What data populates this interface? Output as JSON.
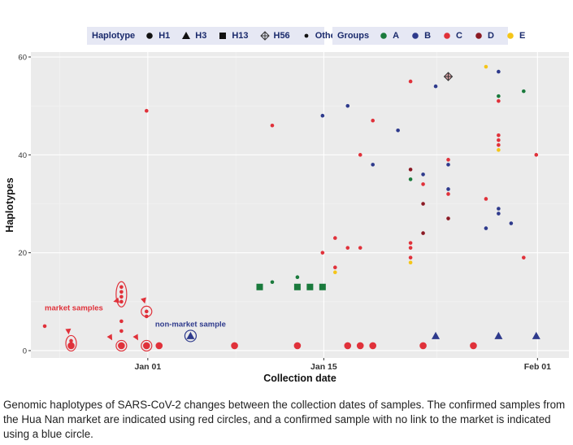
{
  "legend_haplotype": {
    "title": "Haplotype",
    "entries": [
      {
        "label": "H1",
        "marker": "circle"
      },
      {
        "label": "H3",
        "marker": "triangle"
      },
      {
        "label": "H13",
        "marker": "square"
      },
      {
        "label": "H56",
        "marker": "diamond-cross"
      },
      {
        "label": "Others",
        "marker": "small-dot"
      }
    ]
  },
  "legend_groups": {
    "title": "Groups",
    "entries": [
      {
        "label": "A",
        "color": "#1a7a3c"
      },
      {
        "label": "B",
        "color": "#2e3a8c"
      },
      {
        "label": "C",
        "color": "#e0313a"
      },
      {
        "label": "D",
        "color": "#8b1a24"
      },
      {
        "label": "E",
        "color": "#f5c518"
      }
    ]
  },
  "annotations": {
    "market": "market samples",
    "non_market": "non-market sample"
  },
  "caption": "Genomic haplotypes of SARS-CoV-2 changes between the collection dates of samples. The confirmed samples from the Hua Nan market are indicated using red circles, and a confirmed sample with no link to the market is indicated using a blue circle.",
  "chart_data": {
    "type": "scatter",
    "xlabel": "Collection date",
    "ylabel": "Haplotypes",
    "x_ticks": [
      {
        "label": "Jan 01",
        "day": 0
      },
      {
        "label": "Jan 15",
        "day": 14
      },
      {
        "label": "Feb 01",
        "day": 31
      }
    ],
    "x_range_days": [
      -9.3,
      33.5
    ],
    "ylim": [
      -1.5,
      61
    ],
    "y_ticks": [
      0,
      20,
      40,
      60
    ],
    "grid": true,
    "colors": {
      "A": "#1a7a3c",
      "B": "#2e3a8c",
      "C": "#e0313a",
      "D": "#8b1a24",
      "E": "#f5c518"
    },
    "points": [
      {
        "day": -8.2,
        "y": 5,
        "group": "C",
        "hap": "Others"
      },
      {
        "day": -6.1,
        "y": 2,
        "group": "C",
        "hap": "Others"
      },
      {
        "day": -6.1,
        "y": 1,
        "group": "C",
        "hap": "H1"
      },
      {
        "day": -2.1,
        "y": 13,
        "group": "C",
        "hap": "Others"
      },
      {
        "day": -2.1,
        "y": 12,
        "group": "C",
        "hap": "Others"
      },
      {
        "day": -2.1,
        "y": 11,
        "group": "C",
        "hap": "Others"
      },
      {
        "day": -2.1,
        "y": 10,
        "group": "C",
        "hap": "Others"
      },
      {
        "day": -2.1,
        "y": 6,
        "group": "C",
        "hap": "Others"
      },
      {
        "day": -2.1,
        "y": 4,
        "group": "C",
        "hap": "Others"
      },
      {
        "day": -2.1,
        "y": 1,
        "group": "C",
        "hap": "H1"
      },
      {
        "day": -0.1,
        "y": 49,
        "group": "C",
        "hap": "Others"
      },
      {
        "day": -0.1,
        "y": 8,
        "group": "C",
        "hap": "Others"
      },
      {
        "day": -0.1,
        "y": 7,
        "group": "C",
        "hap": "Others"
      },
      {
        "day": -0.1,
        "y": 1,
        "group": "C",
        "hap": "H1"
      },
      {
        "day": 0.9,
        "y": 1,
        "group": "C",
        "hap": "H1"
      },
      {
        "day": 3.4,
        "y": 3,
        "group": "B",
        "hap": "H3"
      },
      {
        "day": 6.9,
        "y": 1,
        "group": "C",
        "hap": "H1"
      },
      {
        "day": 8.9,
        "y": 13,
        "group": "A",
        "hap": "H13"
      },
      {
        "day": 9.9,
        "y": 14,
        "group": "A",
        "hap": "Others"
      },
      {
        "day": 9.9,
        "y": 46,
        "group": "C",
        "hap": "Others"
      },
      {
        "day": 11.9,
        "y": 13,
        "group": "A",
        "hap": "H13"
      },
      {
        "day": 11.9,
        "y": 15,
        "group": "A",
        "hap": "Others"
      },
      {
        "day": 11.9,
        "y": 1,
        "group": "C",
        "hap": "H1"
      },
      {
        "day": 12.9,
        "y": 13,
        "group": "A",
        "hap": "H13"
      },
      {
        "day": 13.9,
        "y": 13,
        "group": "A",
        "hap": "H13"
      },
      {
        "day": 13.9,
        "y": 20,
        "group": "C",
        "hap": "Others"
      },
      {
        "day": 13.9,
        "y": 48,
        "group": "B",
        "hap": "Others"
      },
      {
        "day": 14.9,
        "y": 23,
        "group": "C",
        "hap": "Others"
      },
      {
        "day": 14.9,
        "y": 17,
        "group": "C",
        "hap": "Others"
      },
      {
        "day": 14.9,
        "y": 16,
        "group": "E",
        "hap": "Others"
      },
      {
        "day": 15.9,
        "y": 50,
        "group": "B",
        "hap": "Others"
      },
      {
        "day": 15.9,
        "y": 21,
        "group": "C",
        "hap": "Others"
      },
      {
        "day": 15.9,
        "y": 1,
        "group": "C",
        "hap": "H1"
      },
      {
        "day": 16.9,
        "y": 40,
        "group": "C",
        "hap": "Others"
      },
      {
        "day": 16.9,
        "y": 21,
        "group": "C",
        "hap": "Others"
      },
      {
        "day": 16.9,
        "y": 1,
        "group": "C",
        "hap": "H1"
      },
      {
        "day": 17.9,
        "y": 47,
        "group": "C",
        "hap": "Others"
      },
      {
        "day": 17.9,
        "y": 38,
        "group": "B",
        "hap": "Others"
      },
      {
        "day": 17.9,
        "y": 1,
        "group": "C",
        "hap": "H1"
      },
      {
        "day": 19.9,
        "y": 45,
        "group": "B",
        "hap": "Others"
      },
      {
        "day": 20.9,
        "y": 55,
        "group": "C",
        "hap": "Others"
      },
      {
        "day": 20.9,
        "y": 37,
        "group": "D",
        "hap": "Others"
      },
      {
        "day": 20.9,
        "y": 35,
        "group": "A",
        "hap": "Others"
      },
      {
        "day": 20.9,
        "y": 22,
        "group": "C",
        "hap": "Others"
      },
      {
        "day": 20.9,
        "y": 21,
        "group": "C",
        "hap": "Others"
      },
      {
        "day": 20.9,
        "y": 19,
        "group": "C",
        "hap": "Others"
      },
      {
        "day": 20.9,
        "y": 18,
        "group": "E",
        "hap": "Others"
      },
      {
        "day": 21.9,
        "y": 36,
        "group": "B",
        "hap": "Others"
      },
      {
        "day": 21.9,
        "y": 34,
        "group": "C",
        "hap": "Others"
      },
      {
        "day": 21.9,
        "y": 30,
        "group": "D",
        "hap": "Others"
      },
      {
        "day": 21.9,
        "y": 24,
        "group": "D",
        "hap": "Others"
      },
      {
        "day": 21.9,
        "y": 1,
        "group": "C",
        "hap": "H1"
      },
      {
        "day": 22.9,
        "y": 54,
        "group": "B",
        "hap": "Others"
      },
      {
        "day": 22.9,
        "y": 3,
        "group": "B",
        "hap": "H3"
      },
      {
        "day": 23.9,
        "y": 56,
        "group": "C",
        "hap": "H56"
      },
      {
        "day": 23.9,
        "y": 39,
        "group": "C",
        "hap": "Others"
      },
      {
        "day": 23.9,
        "y": 38,
        "group": "B",
        "hap": "Others"
      },
      {
        "day": 23.9,
        "y": 33,
        "group": "B",
        "hap": "Others"
      },
      {
        "day": 23.9,
        "y": 32,
        "group": "C",
        "hap": "Others"
      },
      {
        "day": 23.9,
        "y": 27,
        "group": "D",
        "hap": "Others"
      },
      {
        "day": 25.9,
        "y": 1,
        "group": "C",
        "hap": "H1"
      },
      {
        "day": 26.9,
        "y": 58,
        "group": "E",
        "hap": "Others"
      },
      {
        "day": 26.9,
        "y": 31,
        "group": "C",
        "hap": "Others"
      },
      {
        "day": 26.9,
        "y": 25,
        "group": "B",
        "hap": "Others"
      },
      {
        "day": 27.9,
        "y": 57,
        "group": "B",
        "hap": "Others"
      },
      {
        "day": 27.9,
        "y": 52,
        "group": "A",
        "hap": "Others"
      },
      {
        "day": 27.9,
        "y": 51,
        "group": "C",
        "hap": "Others"
      },
      {
        "day": 27.9,
        "y": 44,
        "group": "C",
        "hap": "Others"
      },
      {
        "day": 27.9,
        "y": 43,
        "group": "C",
        "hap": "Others"
      },
      {
        "day": 27.9,
        "y": 42,
        "group": "C",
        "hap": "Others"
      },
      {
        "day": 27.9,
        "y": 41,
        "group": "E",
        "hap": "Others"
      },
      {
        "day": 27.9,
        "y": 29,
        "group": "B",
        "hap": "Others"
      },
      {
        "day": 27.9,
        "y": 28,
        "group": "B",
        "hap": "Others"
      },
      {
        "day": 27.9,
        "y": 3,
        "group": "B",
        "hap": "H3"
      },
      {
        "day": 28.9,
        "y": 26,
        "group": "B",
        "hap": "Others"
      },
      {
        "day": 29.9,
        "y": 53,
        "group": "A",
        "hap": "Others"
      },
      {
        "day": 29.9,
        "y": 19,
        "group": "C",
        "hap": "Others"
      },
      {
        "day": 30.9,
        "y": 40,
        "group": "C",
        "hap": "Others"
      },
      {
        "day": 30.9,
        "y": 3,
        "group": "B",
        "hap": "H3"
      }
    ],
    "market_circled": [
      {
        "day": -6.1,
        "y_from": 1,
        "y_to": 2
      },
      {
        "day": -2.1,
        "y_from": 10,
        "y_to": 13
      },
      {
        "day": -2.1,
        "y_from": 1,
        "y_to": 1
      },
      {
        "day": -0.1,
        "y_from": 8,
        "y_to": 8
      },
      {
        "day": -0.1,
        "y_from": 1,
        "y_to": 1
      }
    ],
    "non_market_circled": [
      {
        "day": 3.4,
        "y_from": 3,
        "y_to": 3
      }
    ]
  }
}
